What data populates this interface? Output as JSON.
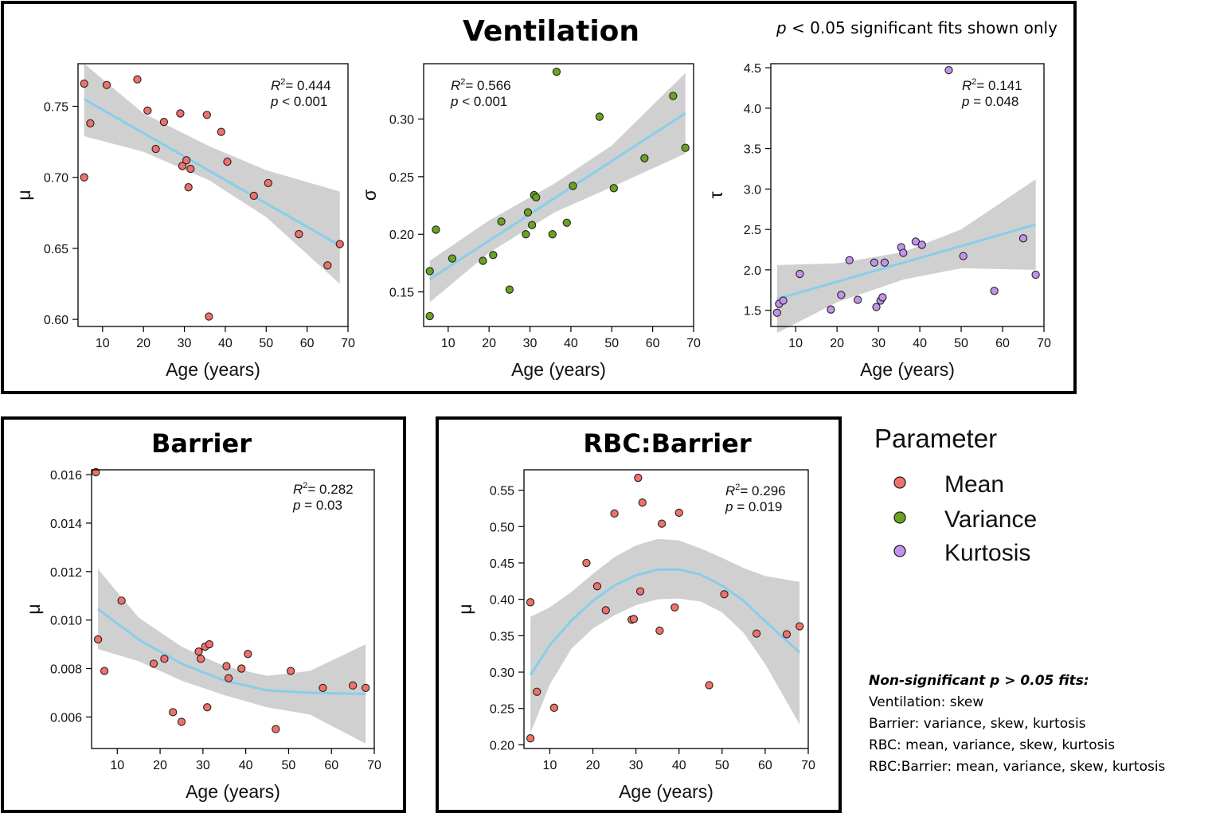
{
  "figure": {
    "note_top": {
      "p": "p",
      "rest": " < 0.05 significant fits shown only"
    },
    "legend": {
      "title": "Parameter",
      "items": [
        {
          "label": "Mean",
          "color": "#f0706a"
        },
        {
          "label": "Variance",
          "color": "#6aa221"
        },
        {
          "label": "Kurtosis",
          "color": "#c393ec"
        }
      ]
    },
    "nonsig": {
      "heading": "Non-significant p > 0.05 fits:",
      "lines": [
        "Ventilation: skew",
        "Barrier: variance, skew, kurtosis",
        "RBC: mean, variance, skew, kurtosis",
        "RBC:Barrier: mean, variance, skew, kurtosis"
      ]
    },
    "sections": {
      "ventilation": "Ventilation",
      "barrier": "Barrier",
      "rbc_barrier": "RBC:Barrier"
    }
  },
  "chart_data": [
    {
      "type": "scatter",
      "section": "Ventilation",
      "xlabel": "Age (years)",
      "ylabel": "μ",
      "color": "#f0706a",
      "xlim": [
        4,
        70
      ],
      "ylim": [
        0.595,
        0.78
      ],
      "xticks": [
        10,
        20,
        30,
        40,
        50,
        60,
        70
      ],
      "yticks": [
        0.6,
        0.65,
        0.7,
        0.75
      ],
      "ytick_labels": [
        "0.60",
        "0.65",
        "0.70",
        "0.75"
      ],
      "stats": {
        "r2": "= 0.444",
        "p": "< 0.001"
      },
      "x": [
        5.5,
        5.5,
        7,
        11,
        18.5,
        21,
        23,
        25,
        29,
        29.5,
        30.5,
        31,
        31.5,
        35.5,
        36,
        39,
        40.5,
        47,
        50.5,
        58,
        65,
        68
      ],
      "y": [
        0.7,
        0.766,
        0.738,
        0.765,
        0.769,
        0.747,
        0.72,
        0.739,
        0.745,
        0.708,
        0.712,
        0.693,
        0.706,
        0.744,
        0.602,
        0.732,
        0.711,
        0.687,
        0.696,
        0.66,
        0.638,
        0.653
      ],
      "fit": {
        "x": [
          5.5,
          68
        ],
        "y": [
          0.755,
          0.652
        ]
      },
      "ci": {
        "x": [
          5.5,
          20,
          36,
          50,
          68
        ],
        "upper": [
          0.78,
          0.745,
          0.722,
          0.705,
          0.69
        ],
        "lower": [
          0.729,
          0.718,
          0.698,
          0.672,
          0.625
        ]
      }
    },
    {
      "type": "scatter",
      "section": "Ventilation",
      "xlabel": "Age (years)",
      "ylabel": "σ",
      "color": "#6aa221",
      "xlim": [
        4,
        70
      ],
      "ylim": [
        0.12,
        0.348
      ],
      "xticks": [
        10,
        20,
        30,
        40,
        50,
        60,
        70
      ],
      "yticks": [
        0.15,
        0.2,
        0.25,
        0.3
      ],
      "ytick_labels": [
        "0.15",
        "0.20",
        "0.25",
        "0.30"
      ],
      "stats": {
        "r2": "= 0.566",
        "p": "< 0.001"
      },
      "x": [
        5.5,
        5.5,
        7,
        11,
        18.5,
        21,
        23,
        25,
        29,
        29.5,
        30.5,
        31,
        31.5,
        35.5,
        36.5,
        39,
        40.5,
        47,
        50.5,
        58,
        65,
        68
      ],
      "y": [
        0.168,
        0.129,
        0.204,
        0.179,
        0.177,
        0.182,
        0.211,
        0.152,
        0.2,
        0.219,
        0.208,
        0.234,
        0.232,
        0.2,
        0.341,
        0.21,
        0.242,
        0.302,
        0.24,
        0.266,
        0.32,
        0.275
      ],
      "fit": {
        "x": [
          5.5,
          68
        ],
        "y": [
          0.161,
          0.305
        ]
      },
      "ci": {
        "x": [
          5.5,
          20,
          36,
          50,
          68
        ],
        "upper": [
          0.177,
          0.212,
          0.244,
          0.277,
          0.34
        ],
        "lower": [
          0.141,
          0.184,
          0.219,
          0.241,
          0.27
        ]
      }
    },
    {
      "type": "scatter",
      "section": "Ventilation",
      "xlabel": "Age (years)",
      "ylabel": "τ",
      "color": "#c393ec",
      "xlim": [
        4,
        70
      ],
      "ylim": [
        1.3,
        4.55
      ],
      "xticks": [
        10,
        20,
        30,
        40,
        50,
        60,
        70
      ],
      "yticks": [
        1.5,
        2,
        2.5,
        3,
        3.5,
        4,
        4.5
      ],
      "ytick_labels": [
        "1.5",
        "2.0",
        "2.5",
        "3.0",
        "3.5",
        "4.0",
        "4.5"
      ],
      "stats": {
        "r2": "= 0.141",
        "p": "= 0.048"
      },
      "x": [
        5.5,
        6,
        7,
        11,
        18.5,
        21,
        23,
        25,
        29,
        29.5,
        30.5,
        31,
        31.5,
        35.5,
        36,
        39,
        40.5,
        47,
        50.5,
        58,
        65,
        68
      ],
      "y": [
        1.47,
        1.58,
        1.62,
        1.95,
        1.51,
        1.69,
        2.12,
        1.63,
        2.09,
        1.54,
        1.62,
        1.66,
        2.09,
        2.28,
        2.21,
        2.35,
        2.31,
        4.47,
        2.17,
        1.74,
        2.39,
        1.94
      ],
      "fit": {
        "x": [
          5.5,
          68
        ],
        "y": [
          1.64,
          2.56
        ]
      },
      "ci": {
        "x": [
          5.5,
          20,
          36,
          50,
          68
        ],
        "upper": [
          2.06,
          2.08,
          2.22,
          2.5,
          3.12
        ],
        "lower": [
          1.22,
          1.6,
          1.88,
          2.02,
          2.0
        ]
      }
    },
    {
      "type": "scatter",
      "section": "Barrier",
      "xlabel": "Age (years)",
      "ylabel": "μ",
      "color": "#f0706a",
      "xlim": [
        4,
        70
      ],
      "ylim": [
        0.0047,
        0.0162
      ],
      "xticks": [
        10,
        20,
        30,
        40,
        50,
        60,
        70
      ],
      "yticks": [
        0.006,
        0.008,
        0.01,
        0.012,
        0.014,
        0.016
      ],
      "ytick_labels": [
        "0.006",
        "0.008",
        "0.010",
        "0.012",
        "0.014",
        "0.016"
      ],
      "stats": {
        "r2": "= 0.282",
        "p": "= 0.03"
      },
      "x": [
        5,
        5.5,
        7,
        11,
        18.5,
        21,
        23,
        25,
        29,
        29.5,
        30.5,
        31,
        31.5,
        35.5,
        36,
        39,
        40.5,
        47,
        50.5,
        58,
        65,
        68
      ],
      "y": [
        0.0161,
        0.0092,
        0.0079,
        0.0108,
        0.0082,
        0.0084,
        0.0062,
        0.0058,
        0.0087,
        0.0084,
        0.0089,
        0.0064,
        0.009,
        0.0081,
        0.0076,
        0.008,
        0.0086,
        0.0055,
        0.0079,
        0.0072,
        0.0073,
        0.0072
      ],
      "fit": {
        "x": [
          5.5,
          15,
          25,
          35,
          45,
          55,
          68
        ],
        "y": [
          0.01045,
          0.0092,
          0.0082,
          0.0075,
          0.0071,
          0.007,
          0.00695
        ]
      },
      "ci": {
        "x": [
          5.5,
          15,
          25,
          35,
          45,
          55,
          68
        ],
        "upper": [
          0.0121,
          0.0101,
          0.0089,
          0.0081,
          0.0077,
          0.0079,
          0.009
        ],
        "lower": [
          0.0088,
          0.0083,
          0.0075,
          0.0069,
          0.0064,
          0.0061,
          0.0049
        ]
      }
    },
    {
      "type": "scatter",
      "section": "RBC:Barrier",
      "xlabel": "Age (years)",
      "ylabel": "μ",
      "color": "#f0706a",
      "xlim": [
        4,
        70
      ],
      "ylim": [
        0.195,
        0.578
      ],
      "xticks": [
        10,
        20,
        30,
        40,
        50,
        60,
        70
      ],
      "yticks": [
        0.2,
        0.25,
        0.3,
        0.35,
        0.4,
        0.45,
        0.5,
        0.55
      ],
      "ytick_labels": [
        "0.20",
        "0.25",
        "0.30",
        "0.35",
        "0.40",
        "0.45",
        "0.50",
        "0.55"
      ],
      "stats": {
        "r2": "= 0.296",
        "p": "= 0.019"
      },
      "x": [
        5.5,
        5.5,
        7,
        11,
        18.5,
        21,
        23,
        25,
        29,
        29.5,
        30.5,
        31,
        31.5,
        35.5,
        36,
        39,
        40,
        47,
        50.5,
        58,
        65,
        68
      ],
      "y": [
        0.396,
        0.209,
        0.273,
        0.251,
        0.45,
        0.418,
        0.385,
        0.518,
        0.372,
        0.373,
        0.567,
        0.411,
        0.533,
        0.357,
        0.504,
        0.389,
        0.519,
        0.282,
        0.407,
        0.353,
        0.352,
        0.363
      ],
      "fit": {
        "x": [
          5.5,
          10,
          15,
          20,
          25,
          30,
          35,
          40,
          45,
          50,
          55,
          60,
          68
        ],
        "y": [
          0.296,
          0.337,
          0.371,
          0.398,
          0.419,
          0.433,
          0.441,
          0.441,
          0.434,
          0.419,
          0.398,
          0.37,
          0.327
        ]
      },
      "ci": {
        "x": [
          5.5,
          10,
          15,
          20,
          25,
          30,
          35,
          40,
          45,
          50,
          55,
          60,
          68
        ],
        "upper": [
          0.376,
          0.389,
          0.41,
          0.435,
          0.458,
          0.474,
          0.483,
          0.481,
          0.47,
          0.457,
          0.443,
          0.432,
          0.424
        ],
        "lower": [
          0.216,
          0.283,
          0.332,
          0.36,
          0.378,
          0.392,
          0.4,
          0.401,
          0.397,
          0.382,
          0.354,
          0.311,
          0.228
        ]
      }
    }
  ]
}
